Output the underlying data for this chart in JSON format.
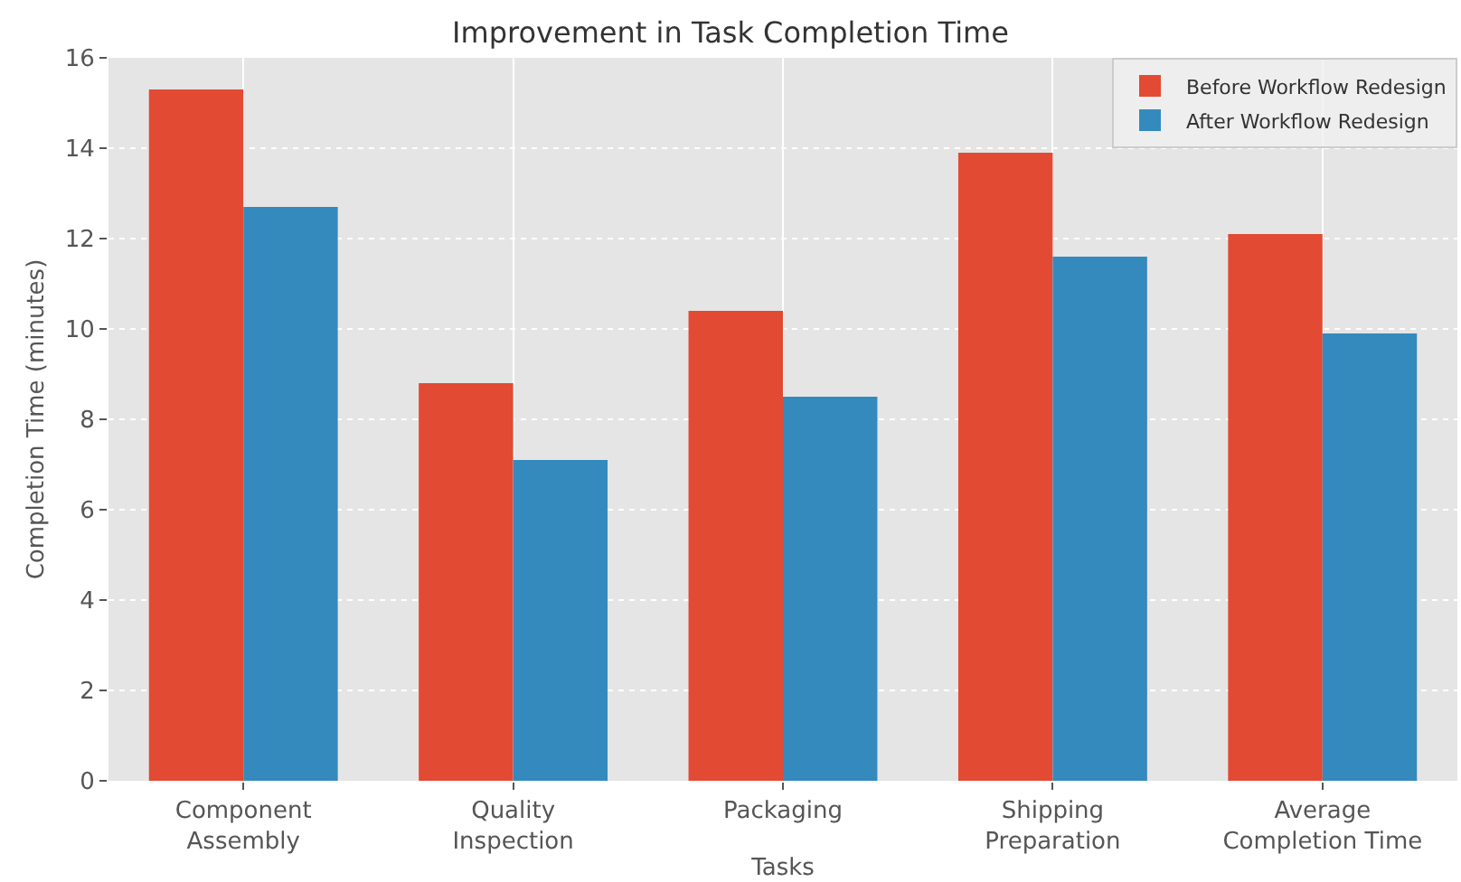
{
  "chart_data": {
    "type": "bar",
    "title": "Improvement in Task Completion Time",
    "xlabel": "Tasks",
    "ylabel": "Completion Time (minutes)",
    "categories": [
      "Component\nAssembly",
      "Quality\nInspection",
      "Packaging",
      "Shipping\nPreparation",
      "Average\nCompletion Time"
    ],
    "series": [
      {
        "name": "Before Workflow Redesign",
        "color": "#e24a33",
        "values": [
          15.3,
          8.8,
          10.4,
          13.9,
          12.1
        ]
      },
      {
        "name": "After Workflow Redesign",
        "color": "#348abd",
        "values": [
          12.7,
          7.1,
          8.5,
          11.6,
          9.9
        ]
      }
    ],
    "ylim": [
      0,
      16
    ],
    "yticks": [
      0,
      2,
      4,
      6,
      8,
      10,
      12,
      14,
      16
    ],
    "grid": true,
    "legend": "top right"
  }
}
